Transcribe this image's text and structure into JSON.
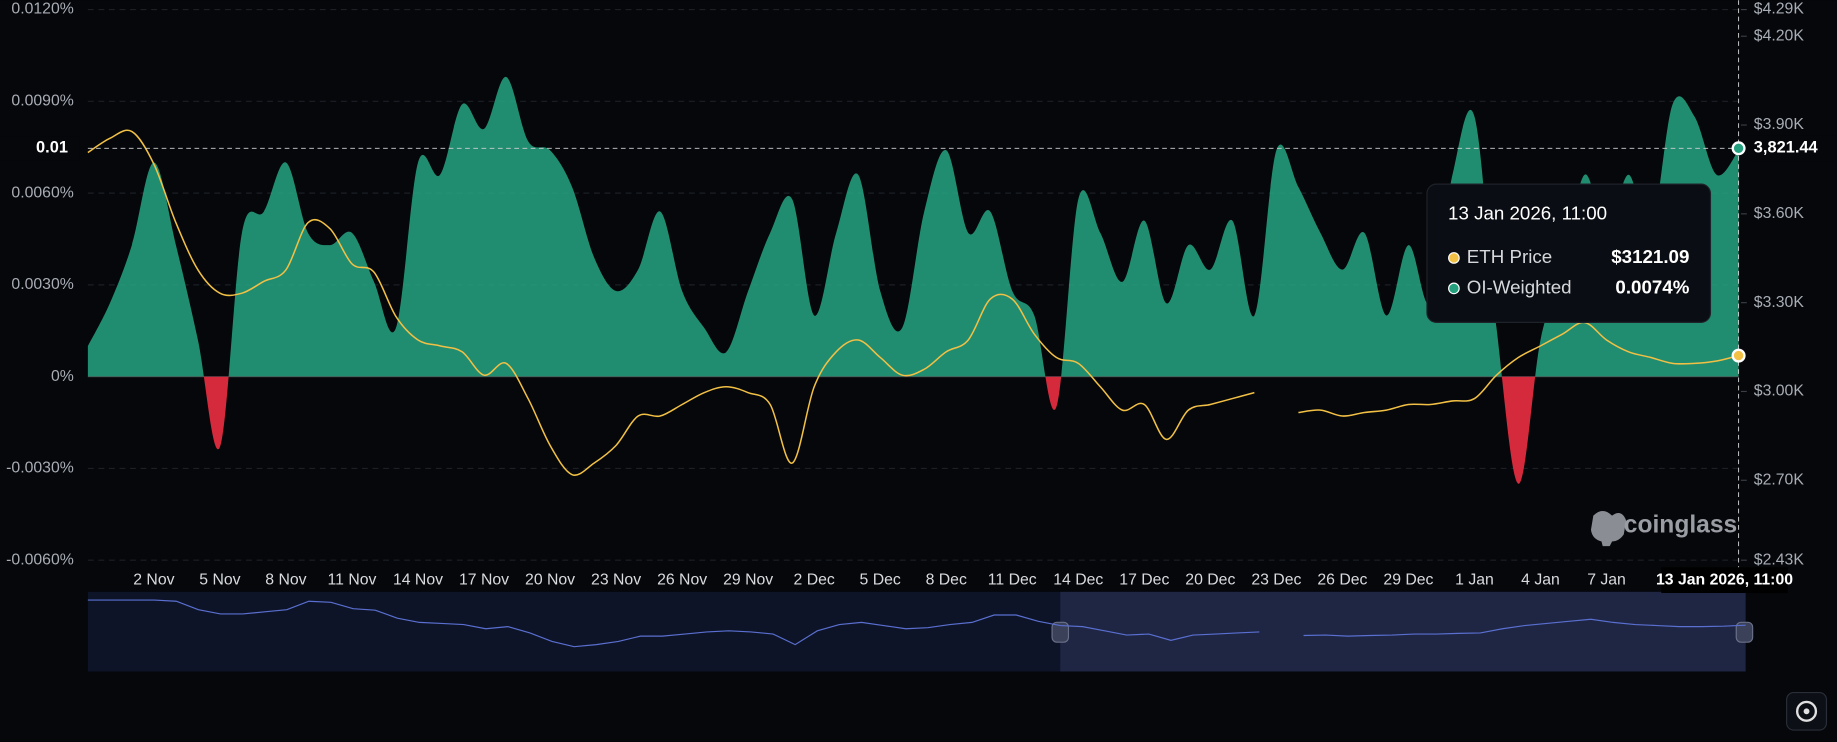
{
  "chart_data": {
    "type": "funding-area",
    "categories": [
      null,
      null,
      null,
      "2 Nov",
      null,
      null,
      "5 Nov",
      null,
      null,
      "8 Nov",
      null,
      null,
      "11 Nov",
      null,
      null,
      "14 Nov",
      null,
      null,
      "17 Nov",
      null,
      null,
      "20 Nov",
      null,
      null,
      "23 Nov",
      null,
      null,
      "26 Nov",
      null,
      null,
      "29 Nov",
      null,
      null,
      "2 Dec",
      null,
      null,
      "5 Dec",
      null,
      null,
      "8 Dec",
      null,
      null,
      "11 Dec",
      null,
      null,
      "14 Dec",
      null,
      null,
      "17 Dec",
      null,
      null,
      "20 Dec",
      null,
      null,
      "23 Dec",
      null,
      null,
      "26 Dec",
      null,
      null,
      "29 Dec",
      null,
      null,
      "1 Jan",
      null,
      null,
      "4 Jan",
      null,
      null,
      "7 Jan",
      null,
      null,
      null,
      null,
      null,
      null
    ],
    "series": [
      {
        "name": "OI-Weighted",
        "color": "#25a07e",
        "negative_color": "#d42a3c",
        "values": [
          0.001,
          0.0024,
          0.0043,
          0.007,
          0.0043,
          0.0012,
          -0.0023,
          0.0047,
          0.0054,
          0.007,
          0.0047,
          0.0043,
          0.0047,
          0.0031,
          0.0016,
          0.007,
          0.0066,
          0.0089,
          0.0081,
          0.0098,
          0.0077,
          0.0074,
          0.0062,
          0.0039,
          0.0028,
          0.0035,
          0.0054,
          0.0028,
          0.0016,
          0.0008,
          0.0028,
          0.0047,
          0.0058,
          0.002,
          0.0047,
          0.0066,
          0.0028,
          0.0016,
          0.0054,
          0.0074,
          0.0047,
          0.0054,
          0.0028,
          0.002,
          -0.001,
          0.0058,
          0.0047,
          0.0031,
          0.0051,
          0.0024,
          0.0043,
          0.0035,
          0.0051,
          0.002,
          0.0074,
          0.0062,
          0.0047,
          0.0035,
          0.0047,
          0.002,
          0.0043,
          0.0024,
          0.0066,
          0.0085,
          0.0016,
          -0.0035,
          0.0012,
          0.0035,
          0.0066,
          0.0047,
          0.0066,
          0.0047,
          0.0089,
          0.0085,
          0.0066,
          0.0074
        ],
        "value_labels": [
          null,
          null,
          null,
          null,
          null,
          null,
          null,
          null,
          null,
          null,
          null,
          null,
          null,
          null,
          null,
          null,
          null,
          null,
          null,
          null,
          null,
          null,
          null,
          null,
          null,
          null,
          null,
          null,
          null,
          null,
          null,
          null,
          null,
          null,
          null,
          null,
          null,
          null,
          null,
          null,
          null,
          null,
          null,
          null,
          null,
          null,
          null,
          null,
          null,
          null,
          null,
          null,
          null,
          null,
          null,
          null,
          null,
          null,
          null,
          null,
          null,
          null,
          null,
          null,
          null,
          null,
          null,
          null,
          null,
          null,
          null,
          null,
          null,
          null,
          null,
          "0.0074%"
        ]
      },
      {
        "name": "ETH Price",
        "color": "#f2c045",
        "axis": "y2",
        "values": [
          3807,
          3855,
          3878,
          3768,
          3570,
          3411,
          3332,
          3332,
          3372,
          3411,
          3570,
          3550,
          3431,
          3403,
          3253,
          3174,
          3154,
          3134,
          3055,
          3095,
          2976,
          2818,
          2719,
          2758,
          2818,
          2917,
          2917,
          2956,
          2996,
          3016,
          2996,
          2956,
          2758,
          3016,
          3134,
          3174,
          3115,
          3055,
          3075,
          3134,
          3174,
          3312,
          3312,
          3194,
          3115,
          3095,
          3016,
          2937,
          2956,
          2838,
          2937,
          2956,
          2976,
          2996,
          null,
          2929,
          2937,
          2917,
          2929,
          2937,
          2956,
          2956,
          2968,
          2976,
          3055,
          3115,
          3154,
          3194,
          3233,
          3174,
          3134,
          3115,
          3095,
          3095,
          3103,
          3121.09
        ],
        "value_labels": [
          null,
          null,
          null,
          null,
          null,
          null,
          null,
          null,
          null,
          null,
          null,
          null,
          null,
          null,
          null,
          null,
          null,
          null,
          null,
          null,
          null,
          null,
          null,
          null,
          null,
          null,
          null,
          null,
          null,
          null,
          null,
          null,
          null,
          null,
          null,
          null,
          null,
          null,
          null,
          null,
          null,
          null,
          null,
          null,
          null,
          null,
          null,
          null,
          null,
          null,
          null,
          null,
          null,
          null,
          null,
          null,
          null,
          null,
          null,
          null,
          null,
          null,
          null,
          null,
          null,
          null,
          null,
          null,
          null,
          null,
          null,
          null,
          null,
          null,
          null,
          "$3121.09"
        ]
      }
    ],
    "ylim": [
      -0.006,
      0.012
    ],
    "yticks": [
      {
        "value": -0.006,
        "label": "-0.0060%"
      },
      {
        "value": -0.003,
        "label": "-0.0030%"
      },
      {
        "value": 0,
        "label": "0%"
      },
      {
        "value": 0.003,
        "label": "0.0030%"
      },
      {
        "value": 0.006,
        "label": "0.0060%"
      },
      {
        "value": 0.009,
        "label": "0.0090%"
      },
      {
        "value": 0.012,
        "label": "0.0120%"
      }
    ],
    "y2lim": [
      2430,
      4290
    ],
    "y2ticks": [
      {
        "value": 2430,
        "label": "$2.43K"
      },
      {
        "value": 2700,
        "label": "$2.70K"
      },
      {
        "value": 3000,
        "label": "$3.00K"
      },
      {
        "value": 3300,
        "label": "$3.30K"
      },
      {
        "value": 3600,
        "label": "$3.60K"
      },
      {
        "value": 3900,
        "label": "$3.90K"
      },
      {
        "value": 4200,
        "label": "$4.20K"
      },
      {
        "value": 4290,
        "label": "$4.29K"
      }
    ],
    "grid": true,
    "tooltip": {
      "title": "13 Jan 2026, 11:00"
    },
    "crosshair": {
      "x_label": "13 Jan 2026, 11:00",
      "y_label": "0.01",
      "y2_value": {
        "value": 3821.44,
        "label": "3,821.44"
      }
    },
    "watermark": "coinglass"
  }
}
